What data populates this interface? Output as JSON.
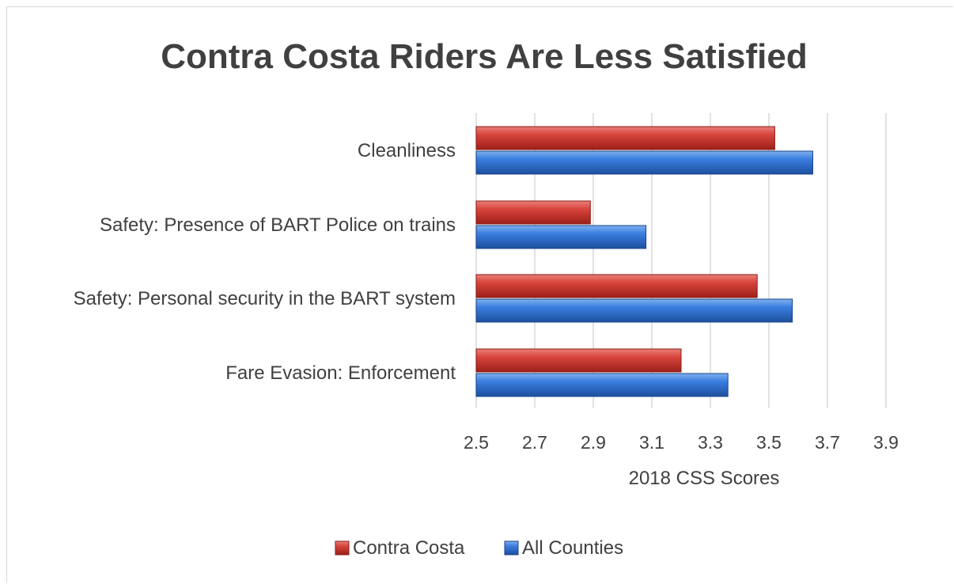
{
  "chart_data": {
    "type": "bar",
    "orientation": "horizontal",
    "title": "Contra Costa Riders Are Less Satisfied",
    "xlabel": "2018 CSS Scores",
    "ylabel": "",
    "categories": [
      "Cleanliness",
      "Safety: Presence of BART Police on trains",
      "Safety: Personal security in the BART system",
      "Fare Evasion: Enforcement"
    ],
    "series": [
      {
        "name": "Contra Costa",
        "color": "#c0392b",
        "values": [
          3.52,
          2.89,
          3.46,
          3.2
        ]
      },
      {
        "name": "All Counties",
        "color": "#2e6fd0",
        "values": [
          3.65,
          3.08,
          3.58,
          3.36
        ]
      }
    ],
    "xlim": [
      2.5,
      4.0
    ],
    "xticks": [
      "2.5",
      "2.7",
      "2.9",
      "3.1",
      "3.3",
      "3.5",
      "3.7",
      "3.9"
    ],
    "grid": "vertical",
    "legend": "bottom"
  }
}
